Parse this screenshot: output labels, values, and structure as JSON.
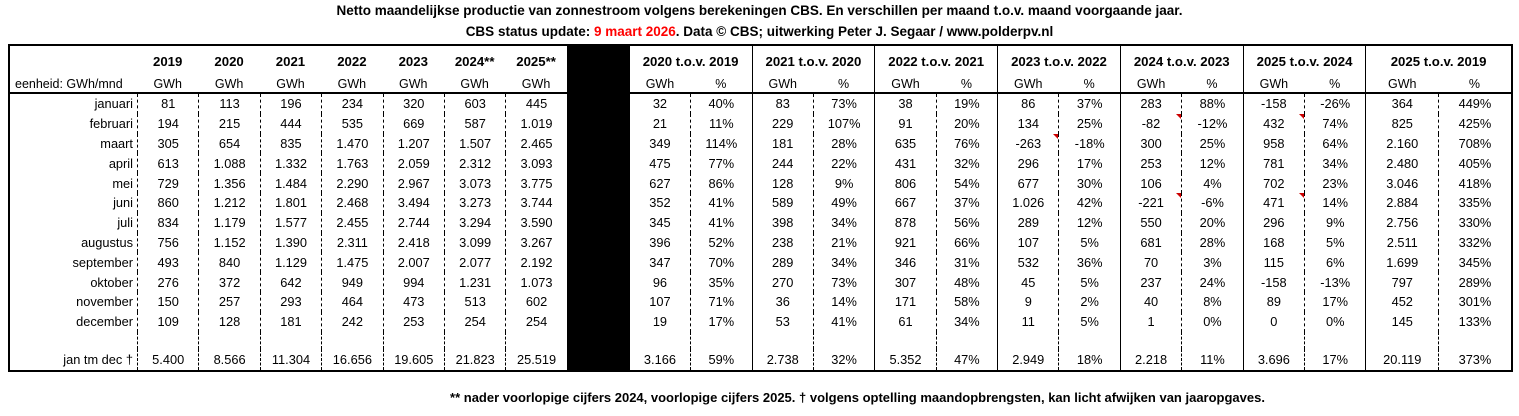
{
  "page": {
    "title_line1": "Netto maandelijkse productie van zonnestroom volgens berekeningen CBS. En verschillen per maand t.o.v. maand voorgaande jaar.",
    "status_prefix": "CBS status update: ",
    "status_date": "9 maart 2026",
    "status_suffix": ". Data © CBS; uitwerking Peter J. Segaar / www.polderpv.nl",
    "footnote": "** nader voorlopige cijfers 2024, voorlopige cijfers 2025.  † volgens optelling maandopbrengsten, kan licht afwijken van jaaropgaves."
  },
  "colors": {
    "status_date_red": "#ff0000",
    "comment_marker_red": "#cc0000",
    "text": "#000000",
    "divider_block": "#000000"
  },
  "chart_data": {
    "type": "table",
    "title": "Netto maandelijkse productie van zonnestroom volgens berekeningen CBS. En verschillen per maand t.o.v. maand voorgaande jaar.",
    "unit_row_label": "eenheid: GWh/mnd",
    "total_label": "jan tm dec †",
    "months": [
      "januari",
      "februari",
      "maart",
      "april",
      "mei",
      "juni",
      "juli",
      "augustus",
      "september",
      "oktober",
      "november",
      "december"
    ],
    "year_columns": [
      {
        "label": "2019",
        "unit": "GWh",
        "values": [
          "81",
          "194",
          "305",
          "613",
          "729",
          "860",
          "834",
          "756",
          "493",
          "276",
          "150",
          "109"
        ],
        "total": "5.400"
      },
      {
        "label": "2020",
        "unit": "GWh",
        "values": [
          "113",
          "215",
          "654",
          "1.088",
          "1.356",
          "1.212",
          "1.179",
          "1.152",
          "840",
          "372",
          "257",
          "128"
        ],
        "total": "8.566"
      },
      {
        "label": "2021",
        "unit": "GWh",
        "values": [
          "196",
          "444",
          "835",
          "1.332",
          "1.484",
          "1.801",
          "1.577",
          "1.390",
          "1.129",
          "642",
          "293",
          "181"
        ],
        "total": "11.304"
      },
      {
        "label": "2022",
        "unit": "GWh",
        "values": [
          "234",
          "535",
          "1.470",
          "1.763",
          "2.290",
          "2.468",
          "2.455",
          "2.311",
          "1.475",
          "949",
          "464",
          "242"
        ],
        "total": "16.656"
      },
      {
        "label": "2023",
        "unit": "GWh",
        "values": [
          "320",
          "669",
          "1.207",
          "2.059",
          "2.967",
          "3.494",
          "2.744",
          "2.418",
          "2.007",
          "994",
          "473",
          "253"
        ],
        "total": "19.605"
      },
      {
        "label": "2024**",
        "unit": "GWh",
        "values": [
          "603",
          "587",
          "1.507",
          "2.312",
          "3.073",
          "3.273",
          "3.294",
          "3.099",
          "2.077",
          "1.231",
          "513",
          "254"
        ],
        "total": "21.823"
      },
      {
        "label": "2025**",
        "unit": "GWh",
        "values": [
          "445",
          "1.019",
          "2.465",
          "3.093",
          "3.775",
          "3.744",
          "3.590",
          "3.267",
          "2.192",
          "1.073",
          "602",
          "254"
        ],
        "total": "25.519"
      }
    ],
    "diff_columns": [
      {
        "label": "2020 t.o.v. 2019",
        "gwh_unit": "GWh",
        "pct_unit": "%",
        "gwh_values": [
          "32",
          "21",
          "349",
          "475",
          "627",
          "352",
          "345",
          "396",
          "347",
          "96",
          "107",
          "19"
        ],
        "gwh_total": "3.166",
        "pct_values": [
          "40%",
          "11%",
          "114%",
          "77%",
          "86%",
          "41%",
          "41%",
          "52%",
          "70%",
          "35%",
          "71%",
          "17%"
        ],
        "pct_total": "59%",
        "comment_marker_rows": []
      },
      {
        "label": "2021 t.o.v. 2020",
        "gwh_unit": "GWh",
        "pct_unit": "%",
        "gwh_values": [
          "83",
          "229",
          "181",
          "244",
          "128",
          "589",
          "398",
          "238",
          "289",
          "270",
          "36",
          "53"
        ],
        "gwh_total": "2.738",
        "pct_values": [
          "73%",
          "107%",
          "28%",
          "22%",
          "9%",
          "49%",
          "34%",
          "21%",
          "34%",
          "73%",
          "14%",
          "41%"
        ],
        "pct_total": "32%",
        "comment_marker_rows": []
      },
      {
        "label": "2022 t.o.v. 2021",
        "gwh_unit": "GWh",
        "pct_unit": "%",
        "gwh_values": [
          "38",
          "91",
          "635",
          "431",
          "806",
          "667",
          "878",
          "921",
          "346",
          "307",
          "171",
          "61"
        ],
        "gwh_total": "5.352",
        "pct_values": [
          "19%",
          "20%",
          "76%",
          "32%",
          "54%",
          "37%",
          "56%",
          "66%",
          "31%",
          "48%",
          "58%",
          "34%"
        ],
        "pct_total": "47%",
        "comment_marker_rows": []
      },
      {
        "label": "2023 t.o.v. 2022",
        "gwh_unit": "GWh",
        "pct_unit": "%",
        "gwh_values": [
          "86",
          "134",
          "-263",
          "296",
          "677",
          "1.026",
          "289",
          "107",
          "532",
          "45",
          "9",
          "11"
        ],
        "gwh_total": "2.949",
        "pct_values": [
          "37%",
          "25%",
          "-18%",
          "17%",
          "30%",
          "42%",
          "12%",
          "5%",
          "36%",
          "5%",
          "2%",
          "5%"
        ],
        "pct_total": "18%",
        "comment_marker_rows": [
          2
        ]
      },
      {
        "label": "2024 t.o.v. 2023",
        "gwh_unit": "GWh",
        "pct_unit": "%",
        "gwh_values": [
          "283",
          "-82",
          "300",
          "253",
          "106",
          "-221",
          "550",
          "681",
          "70",
          "237",
          "40",
          "1"
        ],
        "gwh_total": "2.218",
        "pct_values": [
          "88%",
          "-12%",
          "25%",
          "12%",
          "4%",
          "-6%",
          "20%",
          "28%",
          "3%",
          "24%",
          "8%",
          "0%"
        ],
        "pct_total": "11%",
        "comment_marker_rows": [
          1,
          5
        ]
      },
      {
        "label": "2025 t.o.v. 2024",
        "gwh_unit": "GWh",
        "pct_unit": "%",
        "gwh_values": [
          "-158",
          "432",
          "958",
          "781",
          "702",
          "471",
          "296",
          "168",
          "115",
          "-158",
          "89",
          "0"
        ],
        "gwh_total": "3.696",
        "pct_values": [
          "-26%",
          "74%",
          "64%",
          "34%",
          "23%",
          "14%",
          "9%",
          "5%",
          "6%",
          "-13%",
          "17%",
          "0%"
        ],
        "pct_total": "17%",
        "comment_marker_rows": [
          1,
          5
        ]
      },
      {
        "label": "2025 t.o.v. 2019",
        "gwh_unit": "GWh",
        "pct_unit": "%",
        "gwh_values": [
          "364",
          "825",
          "2.160",
          "2.480",
          "3.046",
          "2.884",
          "2.756",
          "2.511",
          "1.699",
          "797",
          "452",
          "145"
        ],
        "gwh_total": "20.119",
        "pct_values": [
          "449%",
          "425%",
          "708%",
          "405%",
          "418%",
          "335%",
          "330%",
          "332%",
          "345%",
          "289%",
          "301%",
          "133%"
        ],
        "pct_total": "373%",
        "comment_marker_rows": []
      }
    ]
  }
}
